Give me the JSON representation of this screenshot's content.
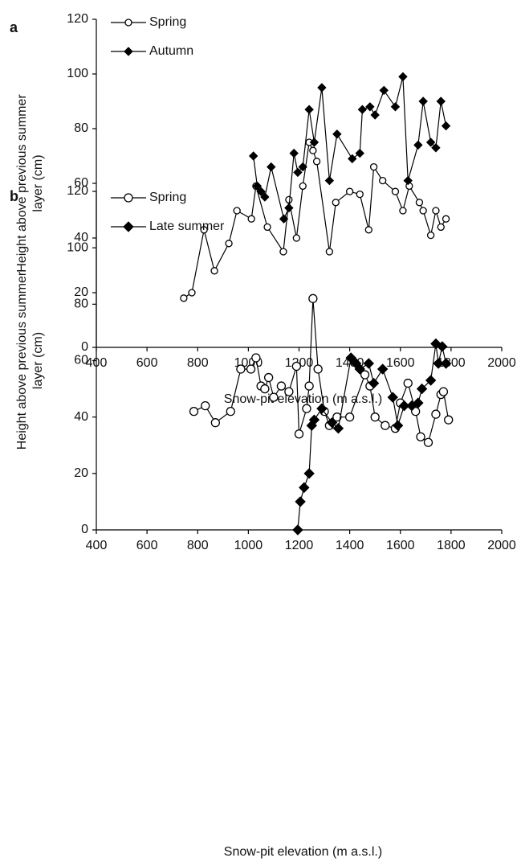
{
  "chart_data": [
    {
      "type": "line",
      "title": "a",
      "xlabel": "Snow-pit elevation (m a.s.l.)",
      "ylabel": [
        "Height above previous summer",
        "layer (cm)"
      ],
      "xlim": [
        400,
        2000
      ],
      "xticks": [
        400,
        600,
        800,
        1000,
        1200,
        1400,
        1600,
        1800,
        2000
      ],
      "ylim": [
        0,
        120
      ],
      "yticks": [
        0,
        20,
        40,
        60,
        80,
        100,
        120
      ],
      "legend": "upper left",
      "series": [
        {
          "name": "Spring",
          "color": "#000000",
          "marker": "circle",
          "x": [
            745,
            777,
            825,
            866,
            923,
            955,
            1012,
            1030,
            1075,
            1138,
            1160,
            1190,
            1215,
            1240,
            1255,
            1270,
            1320,
            1345,
            1400,
            1440,
            1475,
            1495,
            1530,
            1580,
            1610,
            1635,
            1675,
            1690,
            1720,
            1740,
            1760,
            1780
          ],
          "values": [
            18,
            20,
            43,
            28,
            38,
            50,
            47,
            59,
            44,
            35,
            54,
            40,
            59,
            75,
            72,
            68,
            35,
            53,
            57,
            56,
            43,
            66,
            61,
            57,
            50,
            59,
            53,
            50,
            41,
            50,
            44,
            47
          ]
        },
        {
          "name": "Autumn",
          "color": "#000000",
          "marker": "diamond",
          "x": [
            1020,
            1035,
            1050,
            1065,
            1090,
            1140,
            1160,
            1180,
            1195,
            1215,
            1240,
            1260,
            1290,
            1320,
            1350,
            1410,
            1440,
            1450,
            1480,
            1500,
            1535,
            1580,
            1610,
            1630,
            1670,
            1690,
            1720,
            1740,
            1760,
            1780
          ],
          "values": [
            70,
            59,
            57,
            55,
            66,
            47,
            51,
            71,
            64,
            66,
            87,
            75,
            95,
            61,
            78,
            69,
            71,
            87,
            88,
            85,
            94,
            88,
            99,
            61,
            74,
            90,
            75,
            73,
            90,
            81
          ]
        }
      ]
    },
    {
      "type": "line",
      "title": "b",
      "xlabel": "Snow-pit elevation (m a.s.l.)",
      "ylabel": [
        "Height above previous summer",
        "layer (cm)"
      ],
      "xlim": [
        400,
        2000
      ],
      "xticks": [
        400,
        600,
        800,
        1000,
        1200,
        1400,
        1600,
        1800,
        2000
      ],
      "ylim": [
        0,
        120
      ],
      "yticks": [
        0,
        20,
        40,
        60,
        80,
        100,
        120
      ],
      "legend": "upper left",
      "series": [
        {
          "name": "Spring",
          "color": "#000000",
          "marker": "circle",
          "x": [
            785,
            830,
            870,
            930,
            970,
            1010,
            1030,
            1050,
            1065,
            1080,
            1100,
            1130,
            1160,
            1190,
            1200,
            1230,
            1240,
            1255,
            1275,
            1300,
            1320,
            1350,
            1400,
            1460,
            1480,
            1500,
            1540,
            1580,
            1600,
            1630,
            1660,
            1680,
            1710,
            1740,
            1760,
            1770,
            1790
          ],
          "values": [
            42,
            44,
            38,
            42,
            57,
            57,
            61,
            51,
            50,
            54,
            47,
            51,
            49,
            58,
            34,
            43,
            51,
            82,
            57,
            42,
            37,
            40,
            40,
            55,
            51,
            40,
            37,
            36,
            45,
            52,
            42,
            33,
            31,
            41,
            48,
            49,
            39
          ]
        },
        {
          "name": "Late summer",
          "color": "#000000",
          "marker": "diamond",
          "x": [
            1195,
            1205,
            1220,
            1240,
            1250,
            1260,
            1290,
            1330,
            1355,
            1405,
            1425,
            1440,
            1475,
            1495,
            1530,
            1570,
            1590,
            1615,
            1645,
            1670,
            1685,
            1720,
            1740,
            1750,
            1765,
            1780
          ],
          "values": [
            0,
            10,
            15,
            20,
            37,
            39,
            43,
            38,
            36,
            61,
            59,
            57,
            59,
            52,
            57,
            47,
            37,
            44,
            44,
            45,
            50,
            53,
            66,
            59,
            65,
            59
          ]
        }
      ]
    }
  ]
}
